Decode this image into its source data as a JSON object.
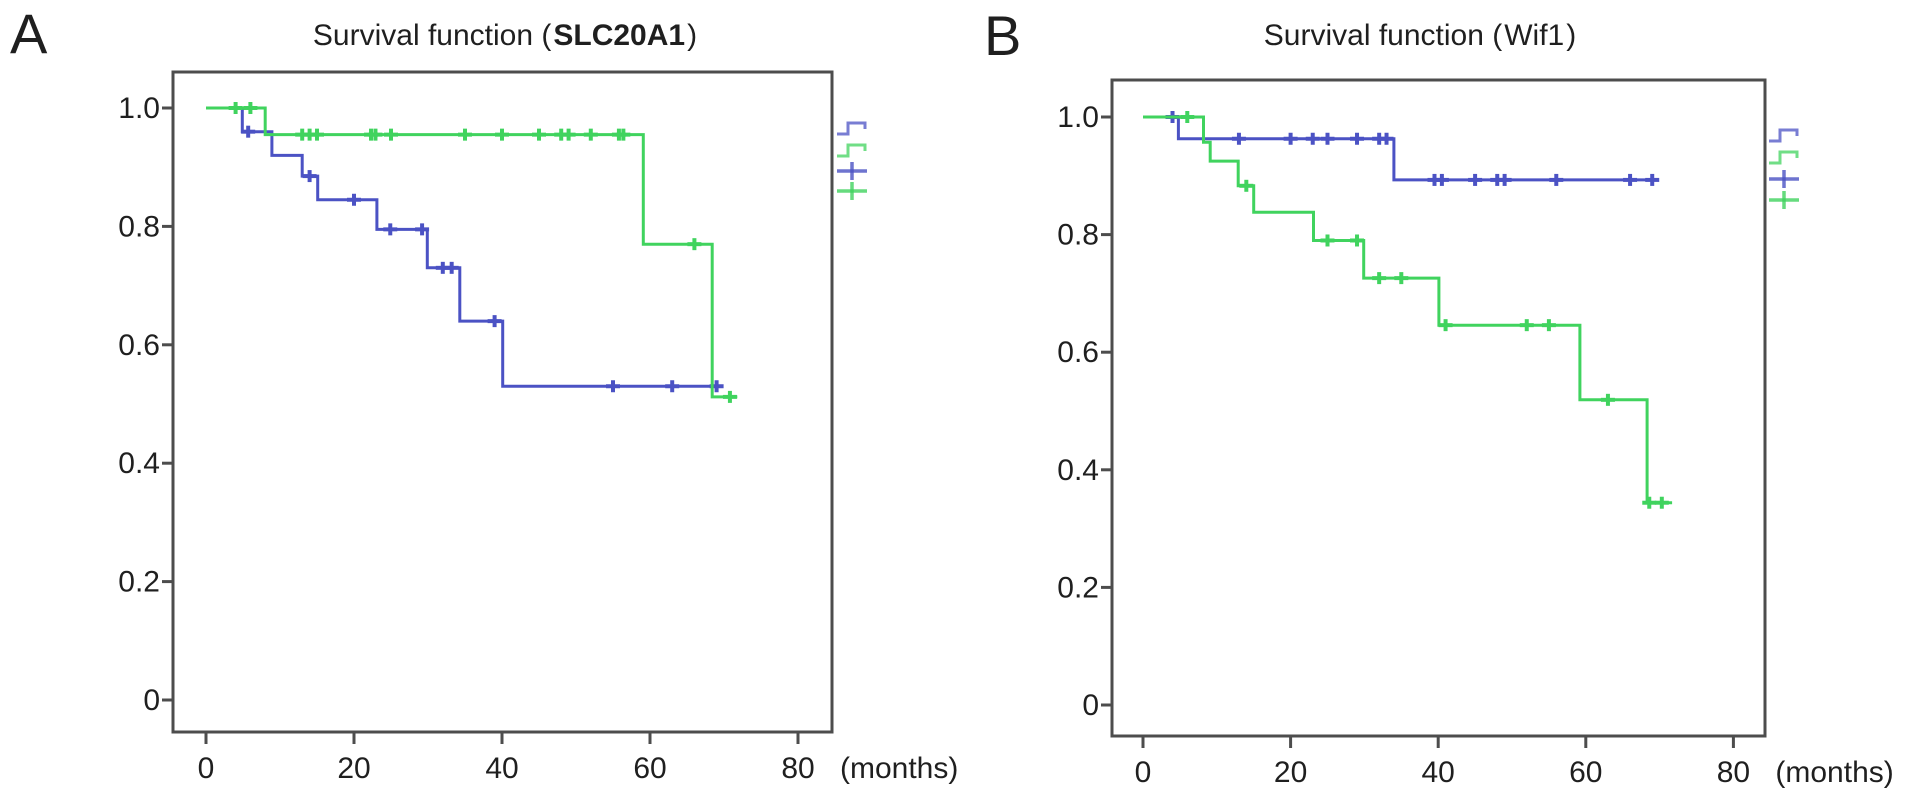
{
  "figure": {
    "background": "#ffffff"
  },
  "colors": {
    "blue_series": "#4b52c4",
    "green_series": "#40d35e",
    "axis": "#4d4d4d",
    "text": "#1f1f1f"
  },
  "panels": [
    {
      "label": "A",
      "title_prefix": "Survival function (",
      "title_gene": "SLC20A1",
      "title_suffix": ")",
      "gene_bold": true,
      "x_axis_unit": "(months)",
      "legend": [
        {
          "icon": "step-line-blue-icon",
          "series": "group-1-blue"
        },
        {
          "icon": "step-line-green-icon",
          "series": "group-2-green"
        },
        {
          "icon": "censor-plus-blue-icon",
          "series": "group-1-blue"
        },
        {
          "icon": "censor-plus-green-icon",
          "series": "group-2-green"
        }
      ]
    },
    {
      "label": "B",
      "title_prefix": "Survival function (",
      "title_gene": "Wif1",
      "title_suffix": ")",
      "gene_bold": false,
      "x_axis_unit": "(months)",
      "legend": [
        {
          "icon": "step-line-blue-icon",
          "series": "group-1-blue"
        },
        {
          "icon": "step-line-green-icon",
          "series": "group-2-green"
        },
        {
          "icon": "censor-plus-blue-icon",
          "series": "group-1-blue"
        },
        {
          "icon": "censor-plus-green-icon",
          "series": "group-2-green"
        }
      ]
    }
  ],
  "chart_data": [
    {
      "type": "line",
      "subtype": "kaplan_meier_step",
      "panel": "A",
      "title": "Survival function (SLC20A1)",
      "xlabel": "(months)",
      "ylabel": "",
      "xlim": [
        0,
        84.6
      ],
      "ylim": [
        0,
        1.06
      ],
      "grid": false,
      "legend_position": "right-outside",
      "xticks": [
        {
          "label": "0",
          "value": 0
        },
        {
          "label": "20",
          "value": 20
        },
        {
          "label": "40",
          "value": 40
        },
        {
          "label": "60",
          "value": 60
        },
        {
          "label": "80",
          "value": 80
        }
      ],
      "yticks": [
        {
          "label": "1.0",
          "value": 1.0
        },
        {
          "label": "0.8",
          "value": 0.8
        },
        {
          "label": "0.6",
          "value": 0.6
        },
        {
          "label": "0.4",
          "value": 0.4
        },
        {
          "label": "0.2",
          "value": 0.2
        },
        {
          "label": "0",
          "value": 0
        }
      ],
      "series": [
        {
          "name": "group-1-blue",
          "color": "#4b52c4",
          "steps": [
            [
              0,
              1.0
            ],
            [
              4.9,
              1.0
            ],
            [
              4.9,
              0.96
            ],
            [
              8.9,
              0.96
            ],
            [
              8.9,
              0.92
            ],
            [
              13,
              0.92
            ],
            [
              13,
              0.885
            ],
            [
              15.1,
              0.885
            ],
            [
              15.1,
              0.845
            ],
            [
              23.1,
              0.845
            ],
            [
              23.1,
              0.795
            ],
            [
              29.9,
              0.795
            ],
            [
              29.9,
              0.73
            ],
            [
              34.3,
              0.73
            ],
            [
              34.3,
              0.64
            ],
            [
              40.1,
              0.64
            ],
            [
              40.1,
              0.53
            ],
            [
              69.6,
              0.53
            ]
          ],
          "censors": [
            [
              5.7,
              0.96
            ],
            [
              14,
              0.885
            ],
            [
              20,
              0.845
            ],
            [
              24.9,
              0.795
            ],
            [
              29.2,
              0.795
            ],
            [
              32,
              0.73
            ],
            [
              33.2,
              0.73
            ],
            [
              39,
              0.64
            ],
            [
              55,
              0.53
            ],
            [
              63,
              0.53
            ],
            [
              69,
              0.53
            ]
          ]
        },
        {
          "name": "group-2-green",
          "color": "#40d35e",
          "steps": [
            [
              0,
              1.0
            ],
            [
              8,
              1.0
            ],
            [
              8,
              0.955
            ],
            [
              59.1,
              0.955
            ],
            [
              59.1,
              0.77
            ],
            [
              68.4,
              0.77
            ],
            [
              68.4,
              0.512
            ],
            [
              71.8,
              0.512
            ]
          ],
          "censors": [
            [
              4,
              1.0
            ],
            [
              6,
              1.0
            ],
            [
              13,
              0.955
            ],
            [
              14,
              0.955
            ],
            [
              15,
              0.955
            ],
            [
              22.3,
              0.955
            ],
            [
              22.9,
              0.955
            ],
            [
              25,
              0.955
            ],
            [
              35,
              0.955
            ],
            [
              40,
              0.955
            ],
            [
              45,
              0.955
            ],
            [
              48,
              0.955
            ],
            [
              49,
              0.955
            ],
            [
              52,
              0.955
            ],
            [
              55.8,
              0.955
            ],
            [
              56.4,
              0.955
            ],
            [
              66,
              0.77
            ],
            [
              70.8,
              0.512
            ]
          ]
        }
      ]
    },
    {
      "type": "line",
      "subtype": "kaplan_meier_step",
      "panel": "B",
      "title": "Survival function (Wif1)",
      "xlabel": "(months)",
      "ylabel": "",
      "xlim": [
        0,
        84.6
      ],
      "ylim": [
        0,
        1.06
      ],
      "grid": false,
      "legend_position": "right-outside",
      "xticks": [
        {
          "label": "0",
          "value": 0
        },
        {
          "label": "20",
          "value": 20
        },
        {
          "label": "40",
          "value": 40
        },
        {
          "label": "60",
          "value": 60
        },
        {
          "label": "80",
          "value": 80
        }
      ],
      "yticks": [
        {
          "label": "1.0",
          "value": 1.0
        },
        {
          "label": "0.8",
          "value": 0.8
        },
        {
          "label": "0.6",
          "value": 0.6
        },
        {
          "label": "0.4",
          "value": 0.4
        },
        {
          "label": "0.2",
          "value": 0.2
        },
        {
          "label": "0",
          "value": 0
        }
      ],
      "series": [
        {
          "name": "group-1-blue",
          "color": "#4b52c4",
          "steps": [
            [
              0,
              1.0
            ],
            [
              4.8,
              1.0
            ],
            [
              4.8,
              0.963
            ],
            [
              34,
              0.963
            ],
            [
              34,
              0.893
            ],
            [
              69.9,
              0.893
            ]
          ],
          "censors": [
            [
              4,
              1.0
            ],
            [
              13,
              0.963
            ],
            [
              20,
              0.963
            ],
            [
              23,
              0.963
            ],
            [
              25,
              0.963
            ],
            [
              29,
              0.963
            ],
            [
              32,
              0.963
            ],
            [
              33,
              0.963
            ],
            [
              39.5,
              0.893
            ],
            [
              40.5,
              0.893
            ],
            [
              45,
              0.893
            ],
            [
              48,
              0.893
            ],
            [
              49,
              0.893
            ],
            [
              56,
              0.893
            ],
            [
              66,
              0.893
            ],
            [
              69,
              0.893
            ]
          ]
        },
        {
          "name": "group-2-green",
          "color": "#40d35e",
          "steps": [
            [
              0,
              1.0
            ],
            [
              8.2,
              1.0
            ],
            [
              8.2,
              0.957
            ],
            [
              9.1,
              0.957
            ],
            [
              9.1,
              0.925
            ],
            [
              12.9,
              0.925
            ],
            [
              12.9,
              0.883
            ],
            [
              15,
              0.883
            ],
            [
              15,
              0.838
            ],
            [
              23.1,
              0.838
            ],
            [
              23.1,
              0.79
            ],
            [
              29.9,
              0.79
            ],
            [
              29.9,
              0.726
            ],
            [
              40.1,
              0.726
            ],
            [
              40.1,
              0.646
            ],
            [
              59.2,
              0.646
            ],
            [
              59.2,
              0.519
            ],
            [
              68.3,
              0.519
            ],
            [
              68.3,
              0.344
            ],
            [
              71.7,
              0.344
            ]
          ],
          "censors": [
            [
              6,
              1.0
            ],
            [
              14,
              0.883
            ],
            [
              25,
              0.79
            ],
            [
              29,
              0.79
            ],
            [
              32,
              0.726
            ],
            [
              35,
              0.726
            ],
            [
              41,
              0.646
            ],
            [
              52,
              0.646
            ],
            [
              55,
              0.646
            ],
            [
              63,
              0.519
            ],
            [
              68.6,
              0.344
            ],
            [
              70.3,
              0.344
            ]
          ]
        }
      ]
    }
  ]
}
